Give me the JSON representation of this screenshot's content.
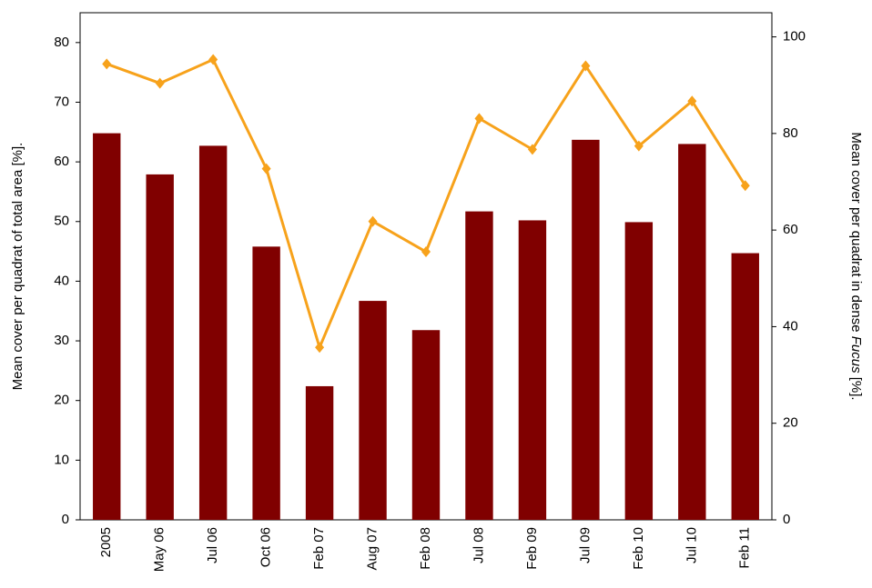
{
  "chart_data": {
    "type": "bar_line",
    "y_label": "Mean cover per quadrat of total area [%].",
    "y2_label": {
      "before": "Mean cover per quadrat in dense ",
      "italic": "Fucus",
      "after": " [%]."
    },
    "categories": [
      "2005",
      "May 06",
      "Jul 06",
      "Oct 06",
      "Feb 07",
      "Aug 07",
      "Feb 08",
      "Jul 08",
      "Feb 09",
      "Jul 09",
      "Feb 10",
      "Jul 10",
      "Feb 11"
    ],
    "series": [
      {
        "type": "bar",
        "color": "#800000",
        "values": [
          64.8,
          57.9,
          62.7,
          45.8,
          22.4,
          36.7,
          31.8,
          51.7,
          50.2,
          63.7,
          49.9,
          63.0,
          44.7
        ]
      },
      {
        "type": "line",
        "axis": "y2",
        "color": "#f7a21b",
        "values": [
          94.4,
          90.4,
          95.3,
          72.7,
          35.7,
          61.8,
          55.5,
          83.1,
          76.7,
          94.0,
          77.4,
          86.7,
          69.2
        ]
      }
    ],
    "ylim": [
      0,
      85
    ],
    "yticks": [
      0,
      10,
      20,
      30,
      40,
      50,
      60,
      70,
      80
    ],
    "y2lim": [
      0,
      105
    ],
    "y2ticks": [
      0,
      20,
      40,
      60,
      80,
      100
    ]
  }
}
